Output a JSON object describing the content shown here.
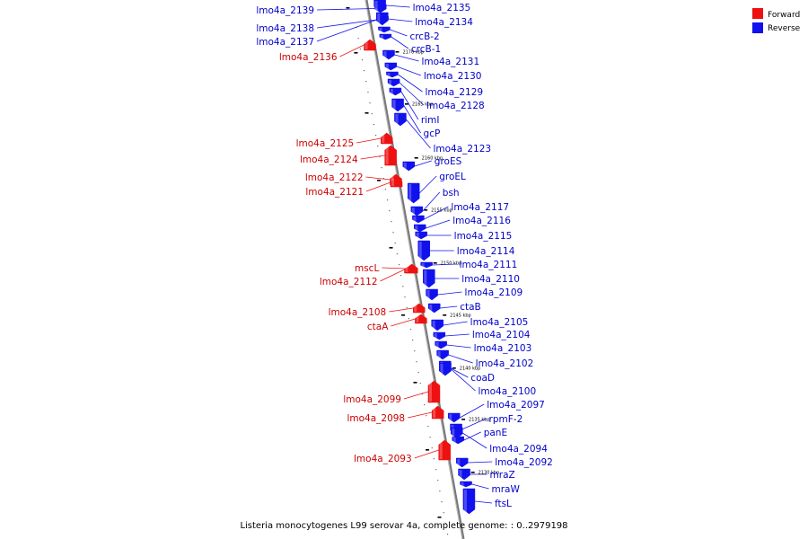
{
  "caption": "Listeria monocytogenes L99 serovar 4a, complete genome: : 0..2979198",
  "legend": {
    "forward": {
      "label": "Forward",
      "color": "#ee1111"
    },
    "reverse": {
      "label": "Reverse",
      "color": "#1111ee"
    }
  },
  "ticks": [
    "2170 kbp",
    "2165 kbp",
    "2160 kbp",
    "2155 kbp",
    "2150 kbp",
    "2145 kbp",
    "2140 kbp",
    "2135 kbp",
    "2130 kbp"
  ],
  "genes": [
    {
      "name": "lmo4a_2139",
      "strand": "rev"
    },
    {
      "name": "lmo4a_2138",
      "strand": "rev"
    },
    {
      "name": "lmo4a_2137",
      "strand": "rev"
    },
    {
      "name": "lmo4a_2136",
      "strand": "fwd"
    },
    {
      "name": "lmo4a_2135",
      "strand": "rev"
    },
    {
      "name": "lmo4a_2134",
      "strand": "rev"
    },
    {
      "name": "crcB-2",
      "strand": "rev"
    },
    {
      "name": "crcB-1",
      "strand": "rev"
    },
    {
      "name": "lmo4a_2131",
      "strand": "rev"
    },
    {
      "name": "lmo4a_2130",
      "strand": "rev"
    },
    {
      "name": "lmo4a_2129",
      "strand": "rev"
    },
    {
      "name": "lmo4a_2128",
      "strand": "rev"
    },
    {
      "name": "rimI",
      "strand": "rev"
    },
    {
      "name": "gcP",
      "strand": "rev"
    },
    {
      "name": "lmo4a_2125",
      "strand": "fwd"
    },
    {
      "name": "lmo4a_2124",
      "strand": "fwd"
    },
    {
      "name": "lmo4a_2123",
      "strand": "rev"
    },
    {
      "name": "groES",
      "strand": "rev"
    },
    {
      "name": "lmo4a_2122",
      "strand": "fwd"
    },
    {
      "name": "groEL",
      "strand": "rev"
    },
    {
      "name": "lmo4a_2121",
      "strand": "fwd"
    },
    {
      "name": "bsh",
      "strand": "rev"
    },
    {
      "name": "lmo4a_2117",
      "strand": "rev"
    },
    {
      "name": "lmo4a_2116",
      "strand": "rev"
    },
    {
      "name": "lmo4a_2115",
      "strand": "rev"
    },
    {
      "name": "lmo4a_2114",
      "strand": "rev"
    },
    {
      "name": "lmo4a_2111",
      "strand": "rev"
    },
    {
      "name": "mscL",
      "strand": "fwd"
    },
    {
      "name": "lmo4a_2112",
      "strand": "fwd"
    },
    {
      "name": "lmo4a_2110",
      "strand": "rev"
    },
    {
      "name": "lmo4a_2109",
      "strand": "rev"
    },
    {
      "name": "ctaB",
      "strand": "rev"
    },
    {
      "name": "lmo4a_2108",
      "strand": "fwd"
    },
    {
      "name": "lmo4a_2105",
      "strand": "rev"
    },
    {
      "name": "ctaA",
      "strand": "fwd"
    },
    {
      "name": "lmo4a_2104",
      "strand": "rev"
    },
    {
      "name": "lmo4a_2103",
      "strand": "rev"
    },
    {
      "name": "lmo4a_2102",
      "strand": "rev"
    },
    {
      "name": "coaD",
      "strand": "rev"
    },
    {
      "name": "lmo4a_2100",
      "strand": "rev"
    },
    {
      "name": "lmo4a_2099",
      "strand": "fwd"
    },
    {
      "name": "lmo4a_2097",
      "strand": "rev"
    },
    {
      "name": "lmo4a_2098",
      "strand": "fwd"
    },
    {
      "name": "rpmF-2",
      "strand": "rev"
    },
    {
      "name": "panE",
      "strand": "rev"
    },
    {
      "name": "lmo4a_2094",
      "strand": "rev"
    },
    {
      "name": "lmo4a_2093",
      "strand": "fwd"
    },
    {
      "name": "lmo4a_2092",
      "strand": "rev"
    },
    {
      "name": "mraZ",
      "strand": "rev"
    },
    {
      "name": "mraW",
      "strand": "rev"
    },
    {
      "name": "ftsL",
      "strand": "rev"
    }
  ]
}
